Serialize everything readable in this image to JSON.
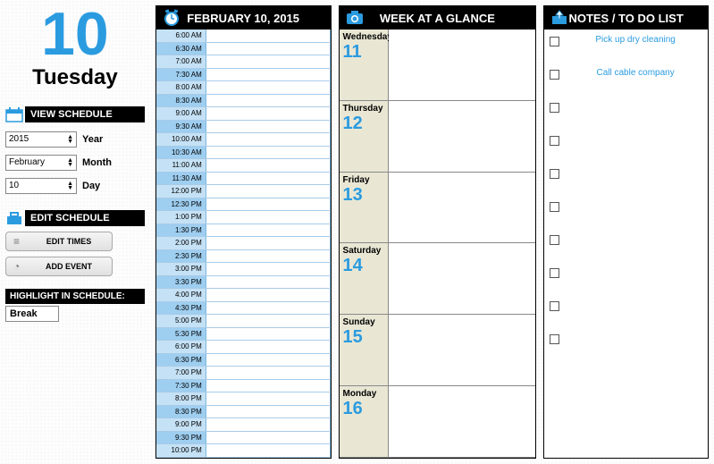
{
  "accent_color": "#2b9be0",
  "date": {
    "number": "10",
    "dayname": "Tuesday"
  },
  "view_schedule": {
    "header": "VIEW SCHEDULE",
    "year": {
      "value": "2015",
      "label": "Year"
    },
    "month": {
      "value": "February",
      "label": "Month"
    },
    "day": {
      "value": "10",
      "label": "Day"
    }
  },
  "edit_schedule": {
    "header": "EDIT SCHEDULE",
    "edit_times": "EDIT TIMES",
    "add_event": "ADD EVENT"
  },
  "highlight": {
    "header": "HIGHLIGHT IN SCHEDULE:",
    "value": "Break"
  },
  "schedule": {
    "header": "FEBRUARY 10, 2015",
    "times": [
      "6:00 AM",
      "6:30 AM",
      "7:00 AM",
      "7:30 AM",
      "8:00 AM",
      "8:30 AM",
      "9:00 AM",
      "9:30 AM",
      "10:00 AM",
      "10:30 AM",
      "11:00 AM",
      "11:30 AM",
      "12:00 PM",
      "12:30 PM",
      "1:00 PM",
      "1:30 PM",
      "2:00 PM",
      "2:30 PM",
      "3:00 PM",
      "3:30 PM",
      "4:00 PM",
      "4:30 PM",
      "5:00 PM",
      "5:30 PM",
      "6:00 PM",
      "6:30 PM",
      "7:00 PM",
      "7:30 PM",
      "8:00 PM",
      "8:30 PM",
      "9:00 PM",
      "9:30 PM",
      "10:00 PM"
    ]
  },
  "week": {
    "header": "WEEK AT A GLANCE",
    "days": [
      {
        "name": "Wednesday",
        "num": "11"
      },
      {
        "name": "Thursday",
        "num": "12"
      },
      {
        "name": "Friday",
        "num": "13"
      },
      {
        "name": "Saturday",
        "num": "14"
      },
      {
        "name": "Sunday",
        "num": "15"
      },
      {
        "name": "Monday",
        "num": "16"
      }
    ]
  },
  "notes": {
    "header": "NOTES / TO DO LIST",
    "items": [
      "Pick up dry cleaning",
      "Call cable company",
      "",
      "",
      "",
      "",
      "",
      "",
      "",
      ""
    ]
  }
}
